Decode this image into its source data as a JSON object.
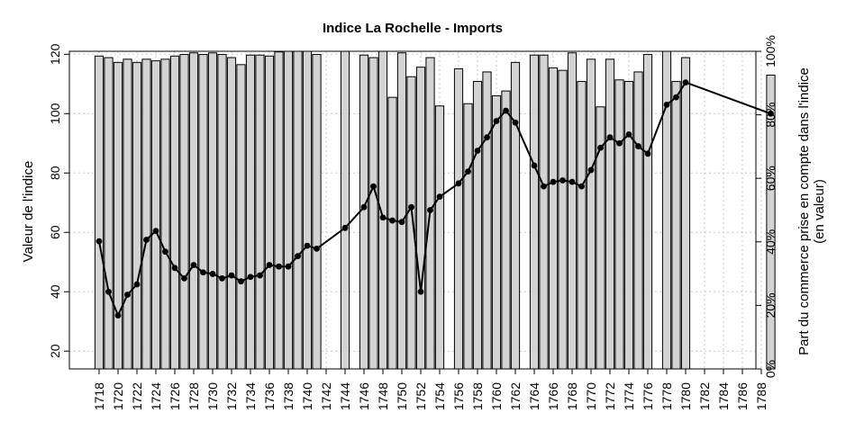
{
  "chart_data": {
    "type": "bar+line",
    "title": "Indice La Rochelle - Imports",
    "ylabel_left": "Valeur de l'indice",
    "ylabel_right_line1": "Part du commerce prise en compte dans l'indice",
    "ylabel_right_line2": "(en valeur)",
    "ylim_left": [
      14,
      121
    ],
    "ylim_right": [
      0,
      100
    ],
    "left_ticks": [
      20,
      40,
      60,
      80,
      100,
      120
    ],
    "right_ticks": [
      0,
      20,
      40,
      60,
      80,
      100
    ],
    "right_tick_labels": [
      "0%",
      "20%",
      "40%",
      "60%",
      "80%",
      "100%"
    ],
    "x_ticks": [
      1718,
      1720,
      1722,
      1724,
      1726,
      1728,
      1730,
      1732,
      1734,
      1736,
      1738,
      1740,
      1742,
      1744,
      1746,
      1748,
      1750,
      1752,
      1754,
      1756,
      1758,
      1760,
      1762,
      1764,
      1766,
      1768,
      1770,
      1772,
      1774,
      1776,
      1778,
      1780,
      1782,
      1784,
      1786,
      1788
    ],
    "x_range": [
      1717,
      1790
    ],
    "grid": true,
    "bars_name": "Part du commerce prise en compte dans l'indice",
    "bars": [
      {
        "year": 1718,
        "share": 98.5
      },
      {
        "year": 1719,
        "share": 98.0
      },
      {
        "year": 1720,
        "share": 96.5
      },
      {
        "year": 1721,
        "share": 97.5
      },
      {
        "year": 1722,
        "share": 96.5
      },
      {
        "year": 1723,
        "share": 97.5
      },
      {
        "year": 1724,
        "share": 97.0
      },
      {
        "year": 1725,
        "share": 97.5
      },
      {
        "year": 1726,
        "share": 98.5
      },
      {
        "year": 1727,
        "share": 99.0
      },
      {
        "year": 1728,
        "share": 99.5
      },
      {
        "year": 1729,
        "share": 99.0
      },
      {
        "year": 1730,
        "share": 99.5
      },
      {
        "year": 1731,
        "share": 99.0
      },
      {
        "year": 1732,
        "share": 98.0
      },
      {
        "year": 1733,
        "share": 95.8
      },
      {
        "year": 1734,
        "share": 98.8
      },
      {
        "year": 1735,
        "share": 98.8
      },
      {
        "year": 1736,
        "share": 98.5
      },
      {
        "year": 1737,
        "share": 99.8
      },
      {
        "year": 1738,
        "share": 100.0
      },
      {
        "year": 1739,
        "share": 100.0
      },
      {
        "year": 1740,
        "share": 100.0
      },
      {
        "year": 1741,
        "share": 99.0
      },
      {
        "year": 1744,
        "share": 100.0
      },
      {
        "year": 1746,
        "share": 98.8
      },
      {
        "year": 1747,
        "share": 98.0
      },
      {
        "year": 1748,
        "share": 100.0
      },
      {
        "year": 1749,
        "share": 85.5
      },
      {
        "year": 1750,
        "share": 99.5
      },
      {
        "year": 1751,
        "share": 92.0
      },
      {
        "year": 1752,
        "share": 95.0
      },
      {
        "year": 1753,
        "share": 98.0
      },
      {
        "year": 1754,
        "share": 82.8
      },
      {
        "year": 1756,
        "share": 94.5
      },
      {
        "year": 1757,
        "share": 83.5
      },
      {
        "year": 1758,
        "share": 90.5
      },
      {
        "year": 1759,
        "share": 93.5
      },
      {
        "year": 1760,
        "share": 86.0
      },
      {
        "year": 1761,
        "share": 87.5
      },
      {
        "year": 1762,
        "share": 96.5
      },
      {
        "year": 1764,
        "share": 98.8
      },
      {
        "year": 1765,
        "share": 98.8
      },
      {
        "year": 1766,
        "share": 94.8
      },
      {
        "year": 1767,
        "share": 94.0
      },
      {
        "year": 1768,
        "share": 99.5
      },
      {
        "year": 1769,
        "share": 90.5
      },
      {
        "year": 1770,
        "share": 97.5
      },
      {
        "year": 1771,
        "share": 82.5
      },
      {
        "year": 1772,
        "share": 97.5
      },
      {
        "year": 1773,
        "share": 91.0
      },
      {
        "year": 1774,
        "share": 90.5
      },
      {
        "year": 1775,
        "share": 93.5
      },
      {
        "year": 1776,
        "share": 99.0
      },
      {
        "year": 1778,
        "share": 100.0
      },
      {
        "year": 1779,
        "share": 90.5
      },
      {
        "year": 1780,
        "share": 98.0
      },
      {
        "year": 1789,
        "share": 92.5
      }
    ],
    "line_name": "Valeur de l'indice",
    "line": [
      {
        "year": 1718,
        "value": 57
      },
      {
        "year": 1719,
        "value": 40
      },
      {
        "year": 1720,
        "value": 32
      },
      {
        "year": 1721,
        "value": 39
      },
      {
        "year": 1722,
        "value": 42.5
      },
      {
        "year": 1723,
        "value": 57.5
      },
      {
        "year": 1724,
        "value": 60.5
      },
      {
        "year": 1725,
        "value": 53.5
      },
      {
        "year": 1726,
        "value": 48
      },
      {
        "year": 1727,
        "value": 44.5
      },
      {
        "year": 1728,
        "value": 49
      },
      {
        "year": 1729,
        "value": 46.5
      },
      {
        "year": 1730,
        "value": 46
      },
      {
        "year": 1731,
        "value": 44.5
      },
      {
        "year": 1732,
        "value": 45.5
      },
      {
        "year": 1733,
        "value": 43.5
      },
      {
        "year": 1734,
        "value": 45
      },
      {
        "year": 1735,
        "value": 45.5
      },
      {
        "year": 1736,
        "value": 49
      },
      {
        "year": 1737,
        "value": 48.5
      },
      {
        "year": 1738,
        "value": 48.5
      },
      {
        "year": 1739,
        "value": 52
      },
      {
        "year": 1740,
        "value": 55.5
      },
      {
        "year": 1741,
        "value": 54.5
      },
      {
        "year": 1744,
        "value": 61.5
      },
      {
        "year": 1746,
        "value": 68.5
      },
      {
        "year": 1747,
        "value": 75.5
      },
      {
        "year": 1748,
        "value": 65
      },
      {
        "year": 1749,
        "value": 64
      },
      {
        "year": 1750,
        "value": 63.5
      },
      {
        "year": 1751,
        "value": 68.5
      },
      {
        "year": 1752,
        "value": 40
      },
      {
        "year": 1753,
        "value": 67.5
      },
      {
        "year": 1754,
        "value": 72
      },
      {
        "year": 1756,
        "value": 76.5
      },
      {
        "year": 1757,
        "value": 80.5
      },
      {
        "year": 1758,
        "value": 87.5
      },
      {
        "year": 1759,
        "value": 92
      },
      {
        "year": 1760,
        "value": 97.5
      },
      {
        "year": 1761,
        "value": 101
      },
      {
        "year": 1762,
        "value": 97
      },
      {
        "year": 1764,
        "value": 82.5
      },
      {
        "year": 1765,
        "value": 75.5
      },
      {
        "year": 1766,
        "value": 77
      },
      {
        "year": 1767,
        "value": 77.5
      },
      {
        "year": 1768,
        "value": 77
      },
      {
        "year": 1769,
        "value": 75.5
      },
      {
        "year": 1770,
        "value": 81
      },
      {
        "year": 1771,
        "value": 88.5
      },
      {
        "year": 1772,
        "value": 92
      },
      {
        "year": 1773,
        "value": 90
      },
      {
        "year": 1774,
        "value": 93
      },
      {
        "year": 1775,
        "value": 89
      },
      {
        "year": 1776,
        "value": 86.5
      },
      {
        "year": 1778,
        "value": 103
      },
      {
        "year": 1779,
        "value": 105.5
      },
      {
        "year": 1780,
        "value": 110.5
      },
      {
        "year": 1789,
        "value": 100
      }
    ],
    "colors": {
      "bar_fill": "#d3d3d3",
      "bar_stroke": "#000000",
      "line": "#000000",
      "grid": "#c8c8c8"
    }
  }
}
